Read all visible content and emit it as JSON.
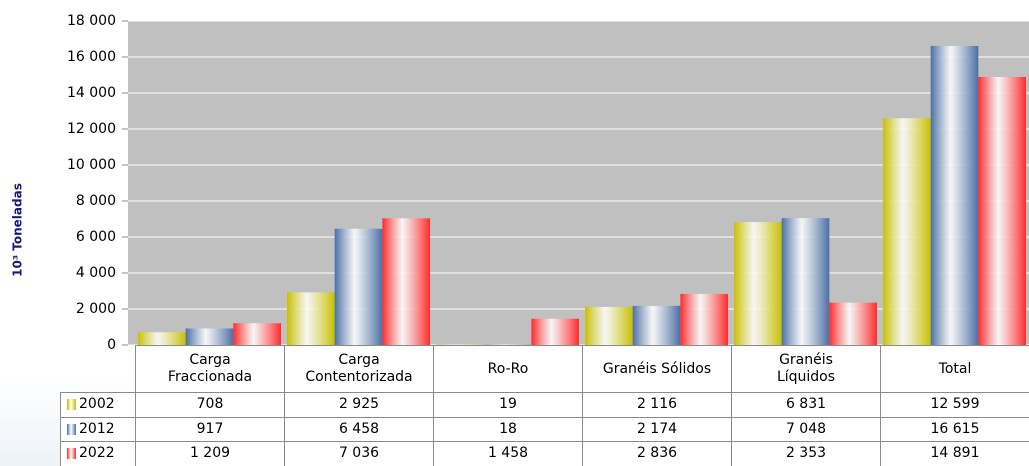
{
  "chart_data": {
    "type": "bar",
    "y_label": "10³ Toneladas",
    "categories": [
      "Carga\nFraccionada",
      "Carga\nContentorizada",
      "Ro-Ro",
      "Granéis Sólidos",
      "Granéis\nLíquidos",
      "Total"
    ],
    "series": [
      {
        "name": "2002",
        "color": "#c8c000",
        "values": [
          708,
          2925,
          19,
          2116,
          6831,
          12599
        ],
        "value_labels": [
          "708",
          "2 925",
          "19",
          "2 116",
          "6 831",
          "12 599"
        ]
      },
      {
        "name": "2012",
        "color": "#4a6fa5",
        "values": [
          917,
          6458,
          18,
          2174,
          7048,
          16615
        ],
        "value_labels": [
          "917",
          "6 458",
          "18",
          "2 174",
          "7 048",
          "16 615"
        ]
      },
      {
        "name": "2022",
        "color": "#ff2a2a",
        "values": [
          1209,
          7036,
          1458,
          2836,
          2353,
          14891
        ],
        "value_labels": [
          "1 209",
          "7 036",
          "1 458",
          "2 836",
          "2 353",
          "14 891"
        ]
      }
    ],
    "ylim": [
      0,
      18000
    ],
    "yticks": [
      0,
      {
        "value": 2000,
        "label": "2 000"
      },
      {
        "value": 4000,
        "label": "4 000"
      },
      {
        "value": 6000,
        "label": "6 000"
      },
      {
        "value": 8000,
        "label": "8 000"
      },
      {
        "value": 10000,
        "label": "10 000"
      },
      {
        "value": 12000,
        "label": "12 000"
      },
      {
        "value": 14000,
        "label": "14 000"
      },
      {
        "value": 16000,
        "label": "16 000"
      },
      {
        "value": 18000,
        "label": "18 000"
      }
    ],
    "grid": true
  }
}
